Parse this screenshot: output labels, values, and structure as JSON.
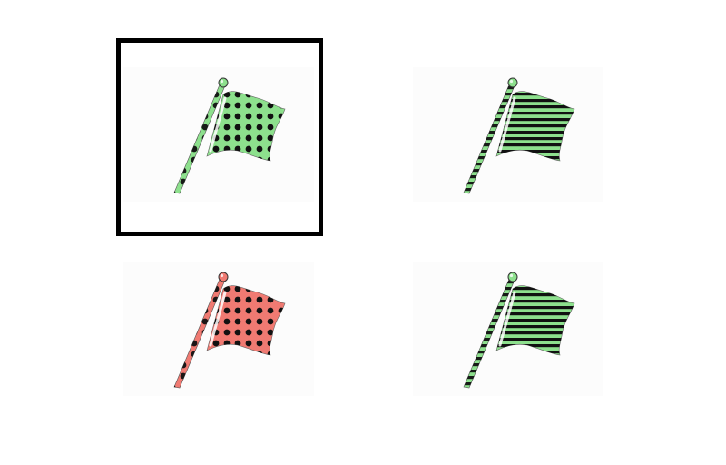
{
  "colors": {
    "background": "#ffffff",
    "card_background": "#fcfcfc",
    "selection_border": "#000000",
    "pattern": "#111111"
  },
  "options": [
    {
      "id": "option-1",
      "icon": "flag-icon",
      "flag_color": "#8de08d",
      "pattern": "dots",
      "selected": true
    },
    {
      "id": "option-2",
      "icon": "flag-icon",
      "flag_color": "#8de08d",
      "pattern": "stripes",
      "selected": false
    },
    {
      "id": "option-3",
      "icon": "flag-icon",
      "flag_color": "#f07a72",
      "pattern": "dots",
      "selected": false
    },
    {
      "id": "option-4",
      "icon": "flag-icon",
      "flag_color": "#8de08d",
      "pattern": "stripes",
      "selected": false
    }
  ]
}
